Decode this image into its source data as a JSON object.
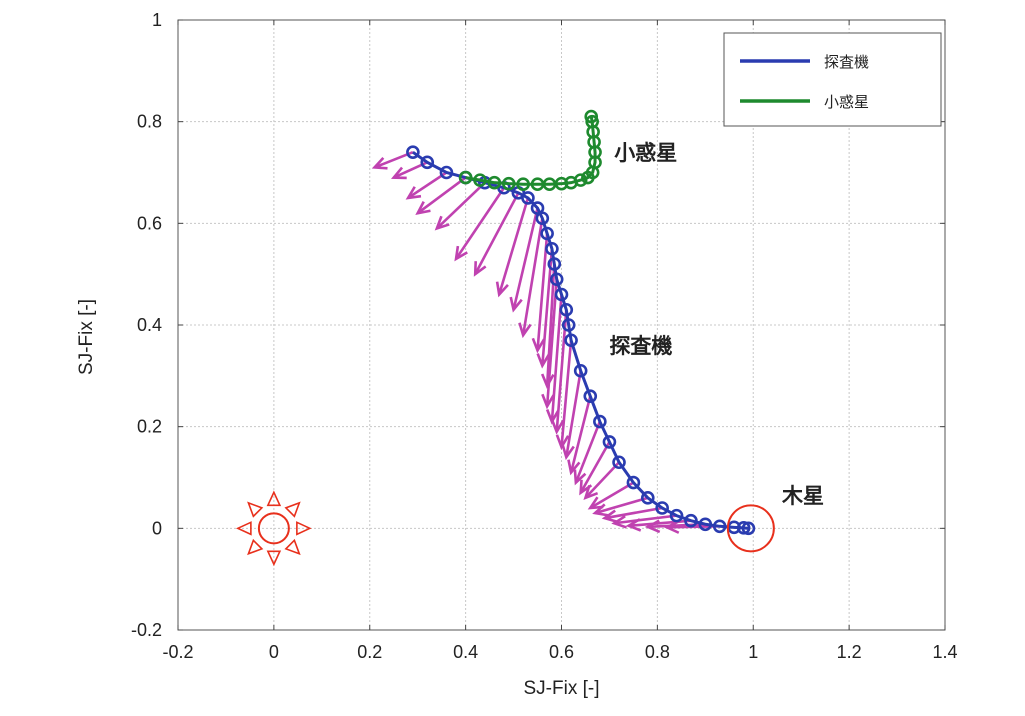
{
  "chart_data": {
    "type": "line",
    "xlabel": "SJ-Fix [-]",
    "ylabel": "SJ-Fix [-]",
    "xlim": [
      -0.2,
      1.4
    ],
    "ylim": [
      -0.2,
      1.0
    ],
    "x_ticks": [
      "-0.2",
      "0",
      "0.2",
      "0.4",
      "0.6",
      "0.8",
      "1",
      "1.2",
      "1.4"
    ],
    "y_ticks": [
      "-0.2",
      "0",
      "0.2",
      "0.4",
      "0.6",
      "0.8",
      "1"
    ],
    "grid": true,
    "legend_position": "top-right",
    "series": [
      {
        "name": "探査機",
        "color": "#2a3cb0",
        "marker": "circle",
        "points": [
          [
            0.29,
            0.74
          ],
          [
            0.32,
            0.72
          ],
          [
            0.36,
            0.7
          ],
          [
            0.4,
            0.69
          ],
          [
            0.44,
            0.68
          ],
          [
            0.48,
            0.67
          ],
          [
            0.51,
            0.66
          ],
          [
            0.53,
            0.65
          ],
          [
            0.55,
            0.63
          ],
          [
            0.56,
            0.61
          ],
          [
            0.57,
            0.58
          ],
          [
            0.58,
            0.55
          ],
          [
            0.585,
            0.52
          ],
          [
            0.59,
            0.49
          ],
          [
            0.6,
            0.46
          ],
          [
            0.61,
            0.43
          ],
          [
            0.615,
            0.4
          ],
          [
            0.62,
            0.37
          ],
          [
            0.64,
            0.31
          ],
          [
            0.66,
            0.26
          ],
          [
            0.68,
            0.21
          ],
          [
            0.7,
            0.17
          ],
          [
            0.72,
            0.13
          ],
          [
            0.75,
            0.09
          ],
          [
            0.78,
            0.06
          ],
          [
            0.81,
            0.04
          ],
          [
            0.84,
            0.025
          ],
          [
            0.87,
            0.015
          ],
          [
            0.9,
            0.008
          ],
          [
            0.93,
            0.004
          ],
          [
            0.96,
            0.002
          ],
          [
            0.98,
            0.001
          ],
          [
            0.99,
            0.0
          ]
        ]
      },
      {
        "name": "小惑星",
        "color": "#1e8a2e",
        "marker": "circle",
        "points": [
          [
            0.4,
            0.69
          ],
          [
            0.43,
            0.685
          ],
          [
            0.46,
            0.68
          ],
          [
            0.49,
            0.678
          ],
          [
            0.52,
            0.677
          ],
          [
            0.55,
            0.677
          ],
          [
            0.575,
            0.677
          ],
          [
            0.6,
            0.678
          ],
          [
            0.62,
            0.68
          ],
          [
            0.64,
            0.685
          ],
          [
            0.655,
            0.69
          ],
          [
            0.665,
            0.7
          ],
          [
            0.67,
            0.72
          ],
          [
            0.67,
            0.74
          ],
          [
            0.668,
            0.76
          ],
          [
            0.666,
            0.78
          ],
          [
            0.664,
            0.8
          ],
          [
            0.662,
            0.81
          ]
        ]
      }
    ],
    "vectors": {
      "color": "#c042b0",
      "items": [
        [
          0.29,
          0.74,
          0.21,
          0.71
        ],
        [
          0.32,
          0.72,
          0.25,
          0.69
        ],
        [
          0.36,
          0.7,
          0.28,
          0.65
        ],
        [
          0.4,
          0.69,
          0.3,
          0.62
        ],
        [
          0.44,
          0.68,
          0.34,
          0.59
        ],
        [
          0.48,
          0.67,
          0.38,
          0.53
        ],
        [
          0.51,
          0.66,
          0.42,
          0.5
        ],
        [
          0.53,
          0.65,
          0.47,
          0.46
        ],
        [
          0.55,
          0.63,
          0.5,
          0.43
        ],
        [
          0.56,
          0.61,
          0.52,
          0.38
        ],
        [
          0.57,
          0.58,
          0.55,
          0.35
        ],
        [
          0.58,
          0.55,
          0.56,
          0.32
        ],
        [
          0.585,
          0.52,
          0.57,
          0.28
        ],
        [
          0.59,
          0.49,
          0.57,
          0.24
        ],
        [
          0.6,
          0.46,
          0.58,
          0.21
        ],
        [
          0.61,
          0.43,
          0.59,
          0.19
        ],
        [
          0.62,
          0.37,
          0.6,
          0.16
        ],
        [
          0.64,
          0.31,
          0.61,
          0.14
        ],
        [
          0.66,
          0.26,
          0.62,
          0.11
        ],
        [
          0.68,
          0.21,
          0.63,
          0.09
        ],
        [
          0.7,
          0.17,
          0.64,
          0.07
        ],
        [
          0.72,
          0.13,
          0.65,
          0.06
        ],
        [
          0.75,
          0.09,
          0.66,
          0.04
        ],
        [
          0.78,
          0.06,
          0.67,
          0.03
        ],
        [
          0.81,
          0.04,
          0.69,
          0.02
        ],
        [
          0.84,
          0.025,
          0.71,
          0.01
        ],
        [
          0.87,
          0.015,
          0.74,
          0.005
        ],
        [
          0.9,
          0.008,
          0.78,
          0.003
        ],
        [
          0.93,
          0.004,
          0.82,
          0.002
        ]
      ]
    },
    "sun": {
      "x": 0.0,
      "y": 0.0,
      "color": "#e8301c"
    },
    "planet_ring": {
      "x": 0.995,
      "y": 0.0,
      "color": "#e8301c"
    },
    "annotations": [
      {
        "text": "小惑星",
        "x": 0.71,
        "y": 0.725
      },
      {
        "text": "探査機",
        "x": 0.7,
        "y": 0.345
      },
      {
        "text": "木星",
        "x": 1.06,
        "y": 0.05
      }
    ],
    "legend": [
      {
        "label": "探査機",
        "color": "#2a3cb0"
      },
      {
        "label": "小惑星",
        "color": "#1e8a2e"
      }
    ]
  }
}
